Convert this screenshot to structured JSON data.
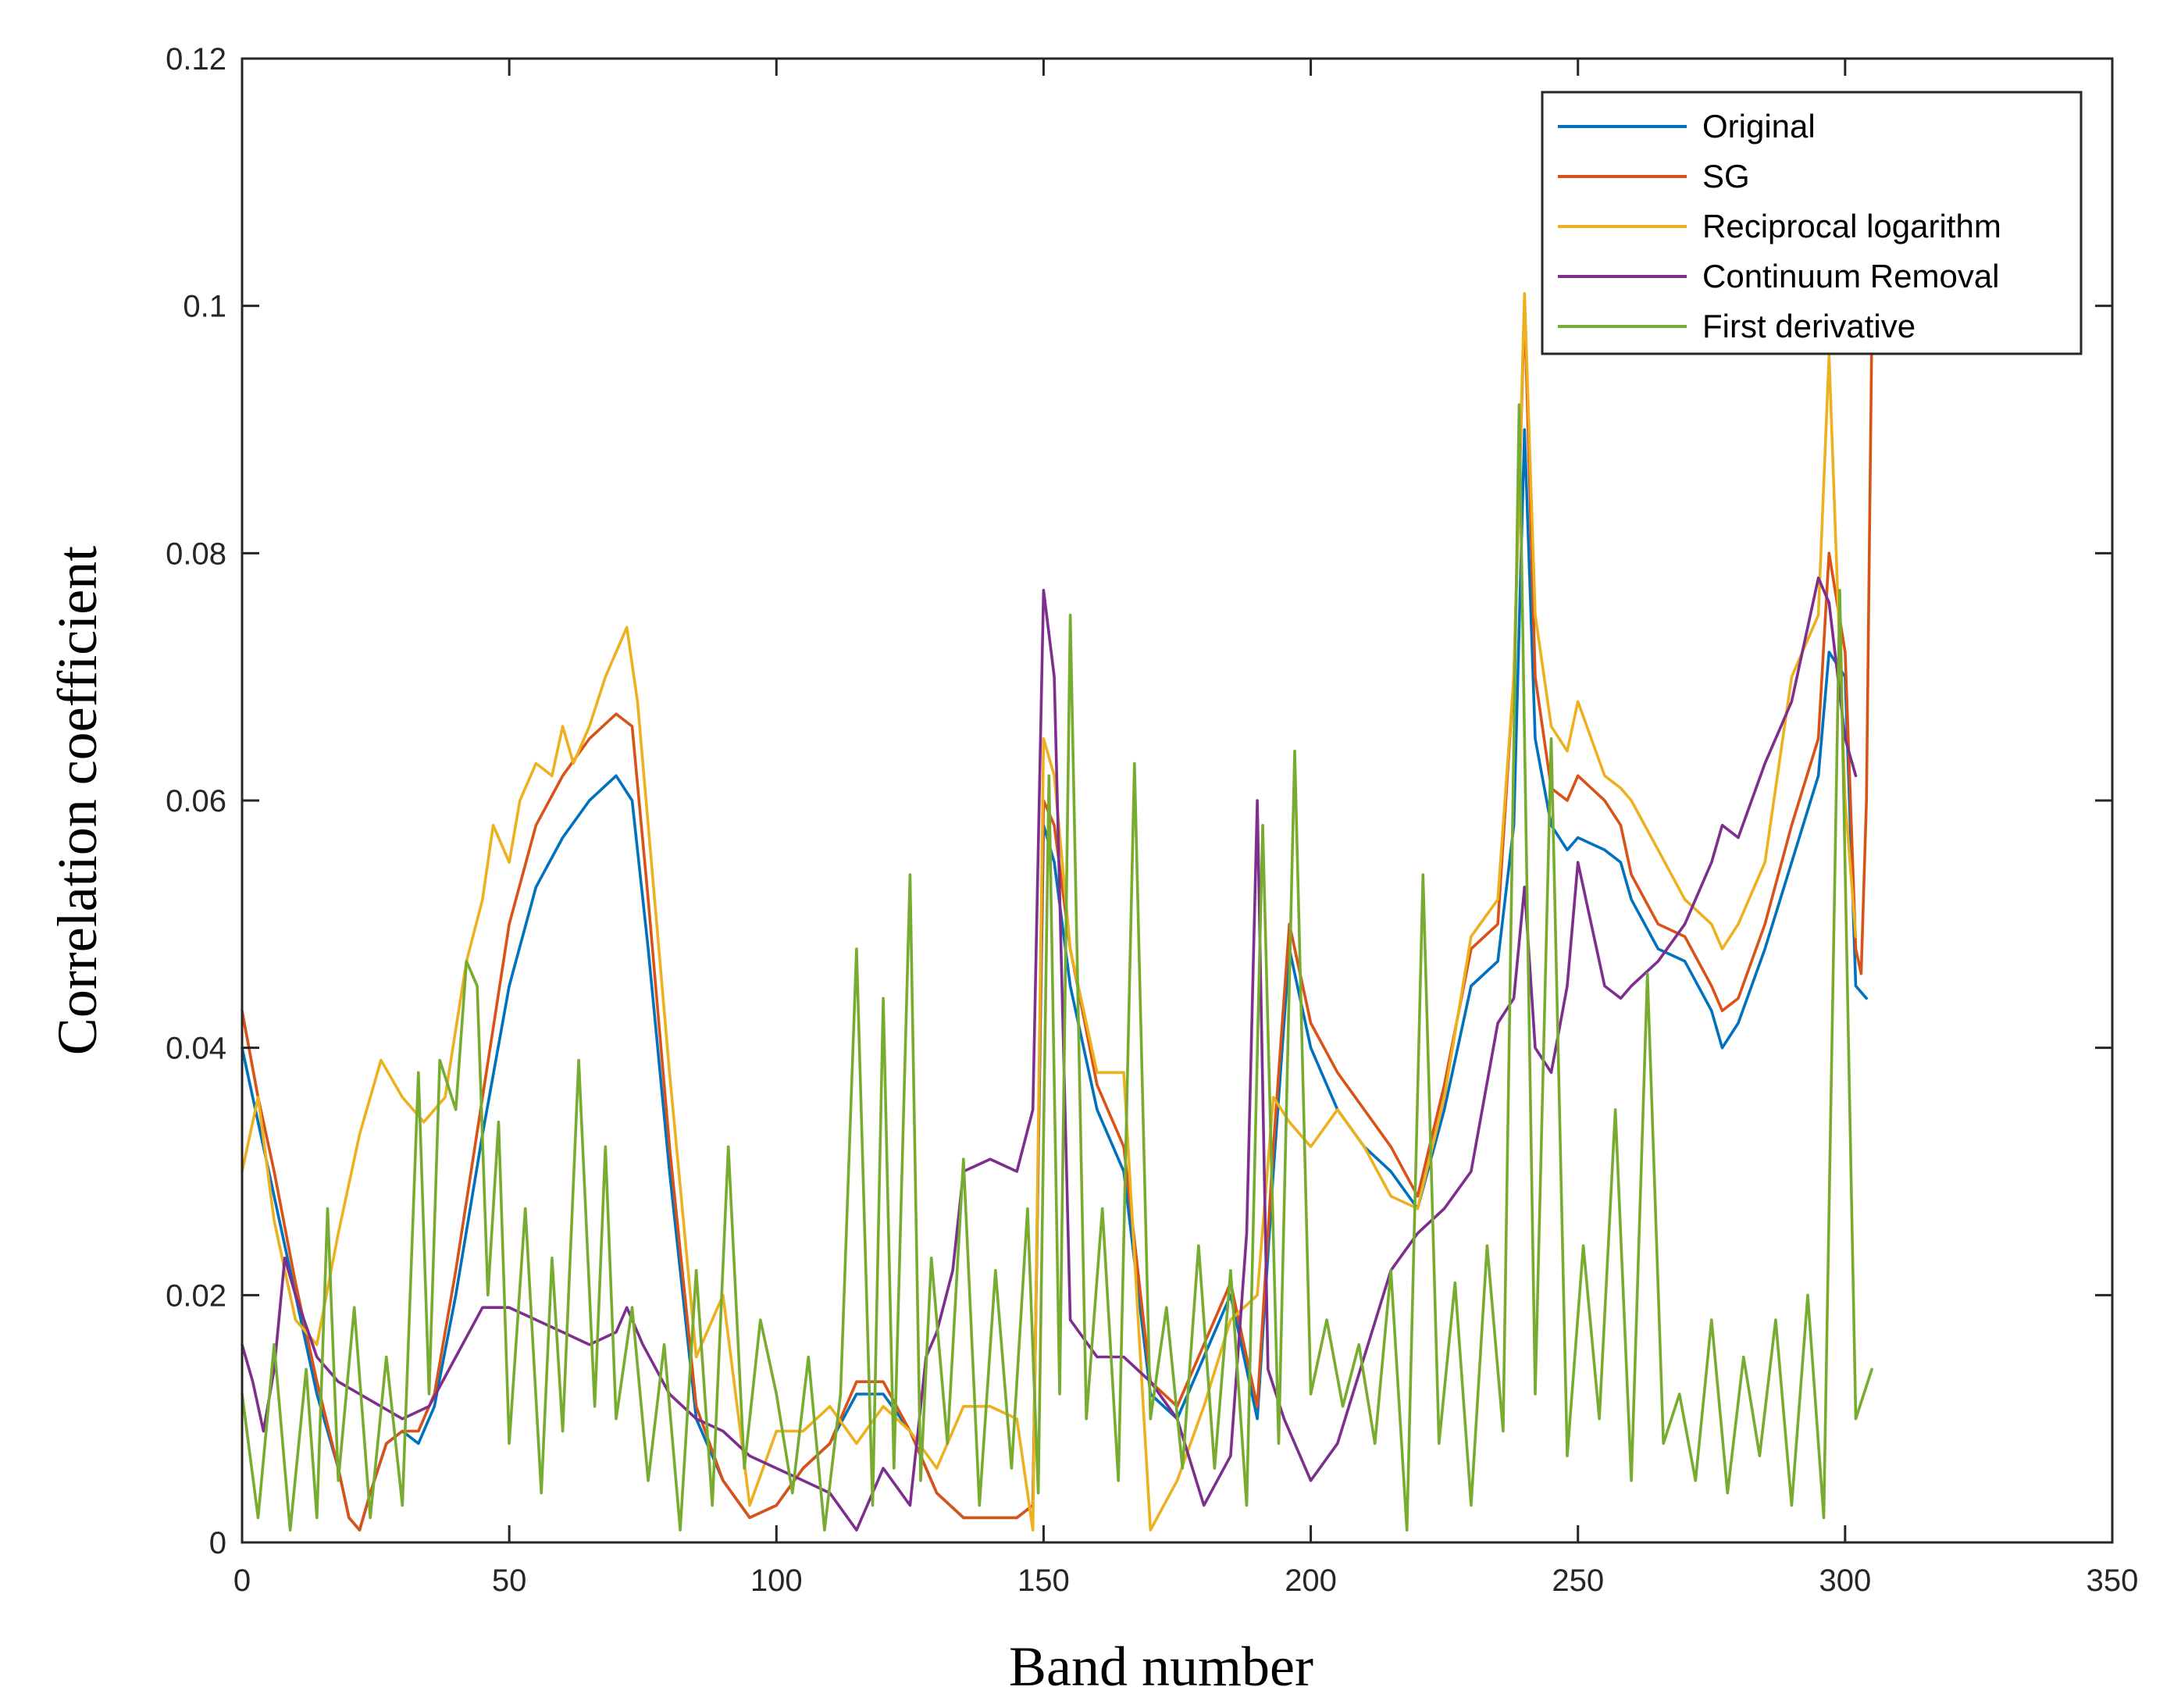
{
  "chart_data": {
    "type": "line",
    "title": "",
    "xlabel": "Band number",
    "ylabel": "Correlation coefficient",
    "xlim": [
      0,
      350
    ],
    "ylim": [
      0,
      0.12
    ],
    "xticks": [
      0,
      50,
      100,
      150,
      200,
      250,
      300,
      350
    ],
    "xtick_labels": [
      "0",
      "50",
      "100",
      "150",
      "200",
      "250",
      "300",
      "350"
    ],
    "yticks": [
      0,
      0.02,
      0.04,
      0.06,
      0.08,
      0.1,
      0.12
    ],
    "ytick_labels": [
      "0",
      "0.02",
      "0.04",
      "0.06",
      "0.08",
      "0.1",
      "0.12"
    ],
    "grid": false,
    "legend_position": "top-right",
    "series": [
      {
        "name": "Original",
        "color": "#0072BD",
        "x": [
          0,
          3,
          6,
          10,
          14,
          18,
          20,
          22,
          24,
          27,
          30,
          33,
          36,
          40,
          45,
          50,
          55,
          60,
          65,
          70,
          73,
          76,
          80,
          85,
          90,
          95,
          100,
          105,
          110,
          115,
          120,
          125,
          130,
          135,
          140,
          145,
          148,
          150,
          152,
          155,
          160,
          165,
          170,
          175,
          180,
          185,
          190,
          193,
          196,
          200,
          205,
          210,
          215,
          220,
          225,
          230,
          235,
          238,
          240,
          242,
          245,
          248,
          250,
          255,
          258,
          260,
          265,
          270,
          275,
          277,
          280,
          285,
          290,
          295,
          297,
          300,
          302,
          304
        ],
        "values": [
          0.04,
          0.034,
          0.028,
          0.02,
          0.012,
          0.006,
          0.002,
          0.001,
          0.004,
          0.008,
          0.009,
          0.008,
          0.011,
          0.02,
          0.033,
          0.045,
          0.053,
          0.057,
          0.06,
          0.062,
          0.06,
          0.048,
          0.03,
          0.01,
          0.005,
          0.002,
          0.003,
          0.006,
          0.008,
          0.012,
          0.012,
          0.009,
          0.004,
          0.002,
          0.002,
          0.002,
          0.003,
          0.058,
          0.055,
          0.045,
          0.035,
          0.03,
          0.012,
          0.01,
          0.015,
          0.02,
          0.01,
          0.03,
          0.048,
          0.04,
          0.035,
          0.032,
          0.03,
          0.027,
          0.035,
          0.045,
          0.047,
          0.058,
          0.09,
          0.065,
          0.058,
          0.056,
          0.057,
          0.056,
          0.055,
          0.052,
          0.048,
          0.047,
          0.043,
          0.04,
          0.042,
          0.048,
          0.055,
          0.062,
          0.072,
          0.07,
          0.045,
          0.044
        ]
      },
      {
        "name": "SG",
        "color": "#D95319",
        "x": [
          0,
          3,
          6,
          10,
          14,
          18,
          20,
          22,
          24,
          27,
          30,
          33,
          36,
          40,
          45,
          50,
          55,
          60,
          65,
          70,
          73,
          76,
          80,
          85,
          90,
          95,
          100,
          105,
          110,
          115,
          120,
          125,
          130,
          135,
          140,
          145,
          148,
          150,
          152,
          155,
          160,
          165,
          170,
          175,
          180,
          185,
          190,
          193,
          196,
          200,
          205,
          210,
          215,
          220,
          225,
          230,
          235,
          238,
          240,
          242,
          245,
          248,
          250,
          255,
          258,
          260,
          265,
          270,
          275,
          277,
          280,
          285,
          290,
          295,
          297,
          300,
          302,
          303,
          304,
          305
        ],
        "values": [
          0.043,
          0.036,
          0.03,
          0.021,
          0.013,
          0.006,
          0.002,
          0.001,
          0.004,
          0.008,
          0.009,
          0.009,
          0.012,
          0.022,
          0.036,
          0.05,
          0.058,
          0.062,
          0.065,
          0.067,
          0.066,
          0.052,
          0.032,
          0.011,
          0.005,
          0.002,
          0.003,
          0.006,
          0.008,
          0.013,
          0.013,
          0.009,
          0.004,
          0.002,
          0.002,
          0.002,
          0.003,
          0.06,
          0.058,
          0.048,
          0.037,
          0.032,
          0.013,
          0.011,
          0.016,
          0.021,
          0.011,
          0.032,
          0.05,
          0.042,
          0.038,
          0.035,
          0.032,
          0.028,
          0.037,
          0.048,
          0.05,
          0.07,
          0.1,
          0.07,
          0.061,
          0.06,
          0.062,
          0.06,
          0.058,
          0.054,
          0.05,
          0.049,
          0.045,
          0.043,
          0.044,
          0.05,
          0.058,
          0.065,
          0.08,
          0.072,
          0.048,
          0.046,
          0.06,
          0.098
        ]
      },
      {
        "name": "Reciprocal logarithm",
        "color": "#EDB120",
        "x": [
          0,
          3,
          6,
          10,
          14,
          18,
          22,
          26,
          30,
          34,
          38,
          42,
          45,
          47,
          50,
          52,
          55,
          58,
          60,
          62,
          65,
          68,
          70,
          72,
          74,
          76,
          80,
          85,
          90,
          95,
          100,
          105,
          110,
          115,
          120,
          125,
          130,
          135,
          140,
          145,
          148,
          150,
          152,
          155,
          160,
          165,
          170,
          175,
          180,
          185,
          190,
          193,
          196,
          200,
          205,
          210,
          215,
          220,
          225,
          230,
          235,
          238,
          240,
          242,
          245,
          248,
          250,
          255,
          258,
          260,
          265,
          270,
          275,
          277,
          280,
          285,
          290,
          295,
          297,
          300,
          302
        ],
        "values": [
          0.03,
          0.036,
          0.026,
          0.018,
          0.016,
          0.025,
          0.033,
          0.039,
          0.036,
          0.034,
          0.036,
          0.047,
          0.052,
          0.058,
          0.055,
          0.06,
          0.063,
          0.062,
          0.066,
          0.063,
          0.066,
          0.07,
          0.072,
          0.074,
          0.068,
          0.058,
          0.038,
          0.015,
          0.02,
          0.003,
          0.009,
          0.009,
          0.011,
          0.008,
          0.011,
          0.009,
          0.006,
          0.011,
          0.011,
          0.01,
          0.001,
          0.065,
          0.062,
          0.048,
          0.038,
          0.038,
          0.001,
          0.005,
          0.011,
          0.018,
          0.02,
          0.036,
          0.034,
          0.032,
          0.035,
          0.032,
          0.028,
          0.027,
          0.036,
          0.049,
          0.052,
          0.07,
          0.101,
          0.075,
          0.066,
          0.064,
          0.068,
          0.062,
          0.061,
          0.06,
          0.056,
          0.052,
          0.05,
          0.048,
          0.05,
          0.055,
          0.07,
          0.075,
          0.096,
          0.06,
          0.049
        ]
      },
      {
        "name": "Continuum Removal",
        "color": "#7E2F8E",
        "x": [
          0,
          2,
          4,
          6,
          8,
          10,
          14,
          18,
          22,
          26,
          30,
          35,
          40,
          45,
          50,
          55,
          60,
          65,
          70,
          72,
          75,
          80,
          85,
          90,
          95,
          100,
          105,
          110,
          115,
          120,
          125,
          128,
          130,
          133,
          135,
          140,
          145,
          148,
          150,
          152,
          155,
          160,
          165,
          170,
          175,
          180,
          185,
          188,
          190,
          192,
          195,
          200,
          205,
          210,
          215,
          220,
          225,
          230,
          235,
          238,
          240,
          242,
          245,
          248,
          250,
          255,
          258,
          260,
          265,
          270,
          275,
          277,
          280,
          285,
          290,
          295,
          297,
          300,
          302
        ],
        "values": [
          0.016,
          0.013,
          0.009,
          0.014,
          0.023,
          0.02,
          0.015,
          0.013,
          0.012,
          0.011,
          0.01,
          0.011,
          0.015,
          0.019,
          0.019,
          0.018,
          0.017,
          0.016,
          0.017,
          0.019,
          0.016,
          0.012,
          0.01,
          0.009,
          0.007,
          0.006,
          0.005,
          0.004,
          0.001,
          0.006,
          0.003,
          0.015,
          0.017,
          0.022,
          0.03,
          0.031,
          0.03,
          0.035,
          0.077,
          0.07,
          0.018,
          0.015,
          0.015,
          0.013,
          0.01,
          0.003,
          0.007,
          0.025,
          0.06,
          0.014,
          0.01,
          0.005,
          0.008,
          0.015,
          0.022,
          0.025,
          0.027,
          0.03,
          0.042,
          0.044,
          0.053,
          0.04,
          0.038,
          0.045,
          0.055,
          0.045,
          0.044,
          0.045,
          0.047,
          0.05,
          0.055,
          0.058,
          0.057,
          0.063,
          0.068,
          0.078,
          0.076,
          0.065,
          0.062
        ]
      },
      {
        "name": "First derivative",
        "color": "#77AC30",
        "x": [
          0,
          3,
          6,
          9,
          12,
          14,
          16,
          18,
          21,
          24,
          27,
          30,
          33,
          35,
          37,
          40,
          42,
          44,
          46,
          48,
          50,
          53,
          56,
          58,
          60,
          63,
          66,
          68,
          70,
          73,
          76,
          79,
          82,
          85,
          88,
          91,
          94,
          97,
          100,
          103,
          106,
          109,
          112,
          115,
          118,
          120,
          122,
          125,
          127,
          129,
          132,
          135,
          138,
          141,
          144,
          147,
          149,
          151,
          153,
          155,
          158,
          161,
          164,
          167,
          170,
          173,
          176,
          179,
          182,
          185,
          188,
          191,
          194,
          197,
          200,
          203,
          206,
          209,
          212,
          215,
          218,
          221,
          224,
          227,
          230,
          233,
          236,
          239,
          242,
          245,
          248,
          251,
          254,
          257,
          260,
          263,
          266,
          269,
          272,
          275,
          278,
          281,
          284,
          287,
          290,
          293,
          296,
          299,
          302,
          305
        ],
        "values": [
          0.012,
          0.002,
          0.016,
          0.001,
          0.014,
          0.002,
          0.027,
          0.005,
          0.019,
          0.002,
          0.015,
          0.003,
          0.038,
          0.012,
          0.039,
          0.035,
          0.047,
          0.045,
          0.02,
          0.034,
          0.008,
          0.027,
          0.004,
          0.023,
          0.009,
          0.039,
          0.011,
          0.032,
          0.01,
          0.019,
          0.005,
          0.016,
          0.001,
          0.022,
          0.003,
          0.032,
          0.006,
          0.018,
          0.012,
          0.004,
          0.015,
          0.001,
          0.012,
          0.048,
          0.003,
          0.044,
          0.006,
          0.054,
          0.005,
          0.023,
          0.008,
          0.031,
          0.003,
          0.022,
          0.006,
          0.027,
          0.004,
          0.062,
          0.012,
          0.075,
          0.01,
          0.027,
          0.005,
          0.063,
          0.01,
          0.019,
          0.006,
          0.024,
          0.006,
          0.022,
          0.003,
          0.058,
          0.008,
          0.064,
          0.012,
          0.018,
          0.011,
          0.016,
          0.008,
          0.022,
          0.001,
          0.054,
          0.008,
          0.021,
          0.003,
          0.024,
          0.009,
          0.092,
          0.012,
          0.065,
          0.007,
          0.024,
          0.01,
          0.035,
          0.005,
          0.046,
          0.008,
          0.012,
          0.005,
          0.018,
          0.004,
          0.015,
          0.007,
          0.018,
          0.003,
          0.02,
          0.002,
          0.077,
          0.01,
          0.014
        ]
      }
    ]
  }
}
